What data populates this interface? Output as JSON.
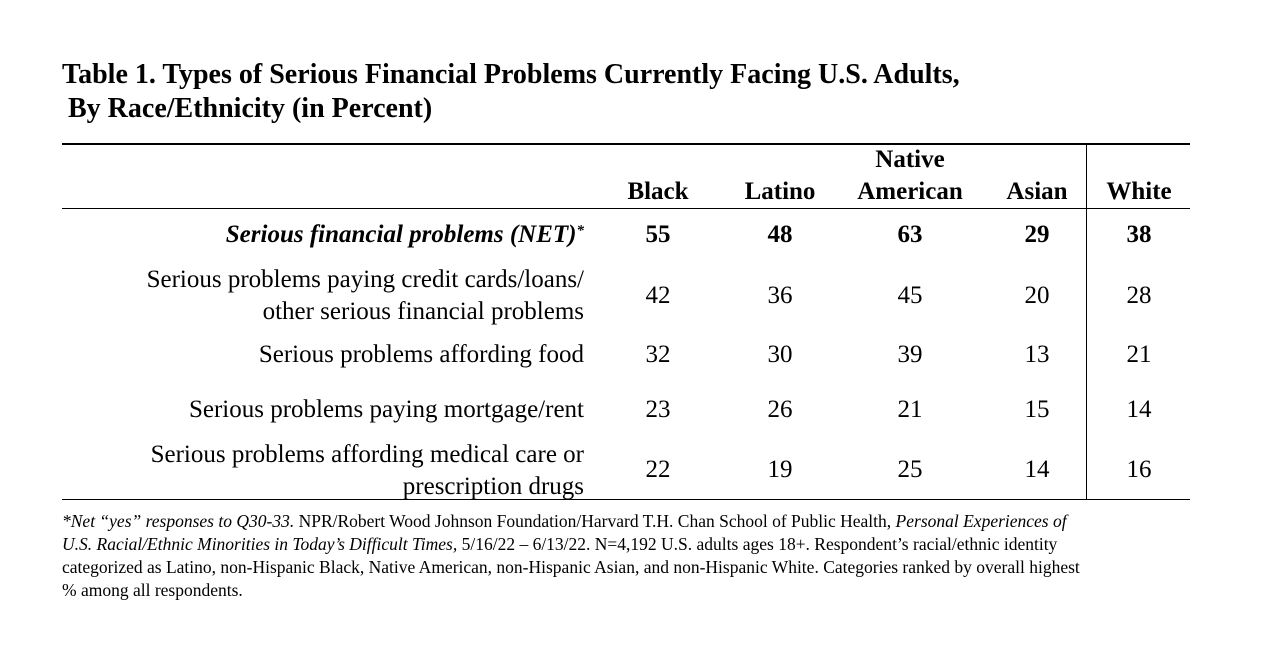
{
  "title": {
    "line1": "Table 1. Types of Serious Financial Problems Currently Facing U.S. Adults,",
    "line2": "By Race/Ethnicity (in Percent)"
  },
  "columns": {
    "black": "Black",
    "latino": "Latino",
    "native_line1": "Native",
    "native_line2": "American",
    "asian": "Asian",
    "white": "White"
  },
  "rows": [
    {
      "label_line1": "Serious financial problems (NET)",
      "label_marker": "*",
      "values": [
        "55",
        "48",
        "63",
        "29",
        "38"
      ]
    },
    {
      "label_line1": "Serious problems paying credit cards/loans/",
      "label_line2": "other serious financial problems",
      "values": [
        "42",
        "36",
        "45",
        "20",
        "28"
      ]
    },
    {
      "label_line1": "Serious problems affording food",
      "values": [
        "32",
        "30",
        "39",
        "13",
        "21"
      ]
    },
    {
      "label_line1": "Serious problems paying mortgage/rent",
      "values": [
        "23",
        "26",
        "21",
        "15",
        "14"
      ]
    },
    {
      "label_line1": "Serious problems affording medical care or",
      "label_line2": "prescription drugs",
      "values": [
        "22",
        "19",
        "25",
        "14",
        "16"
      ]
    }
  ],
  "footnote": {
    "l1_italic_a": "*Net “yes” responses to Q30-33.",
    "l1_plain": " NPR/Robert Wood Johnson Foundation/Harvard T.H. Chan School of Public Health, ",
    "l1_italic_b": "Personal Experiences of",
    "l2_italic": "U.S. Racial/Ethnic Minorities in Today’s Difficult Times,",
    "l2_plain": " 5/16/22 – 6/13/22. N=4,192 U.S. adults ages 18+. Respondent’s racial/ethnic identity",
    "l3": "categorized as Latino, non-Hispanic Black, Native American, non-Hispanic Asian, and non-Hispanic White. Categories ranked by overall highest",
    "l4": "% among all respondents."
  }
}
